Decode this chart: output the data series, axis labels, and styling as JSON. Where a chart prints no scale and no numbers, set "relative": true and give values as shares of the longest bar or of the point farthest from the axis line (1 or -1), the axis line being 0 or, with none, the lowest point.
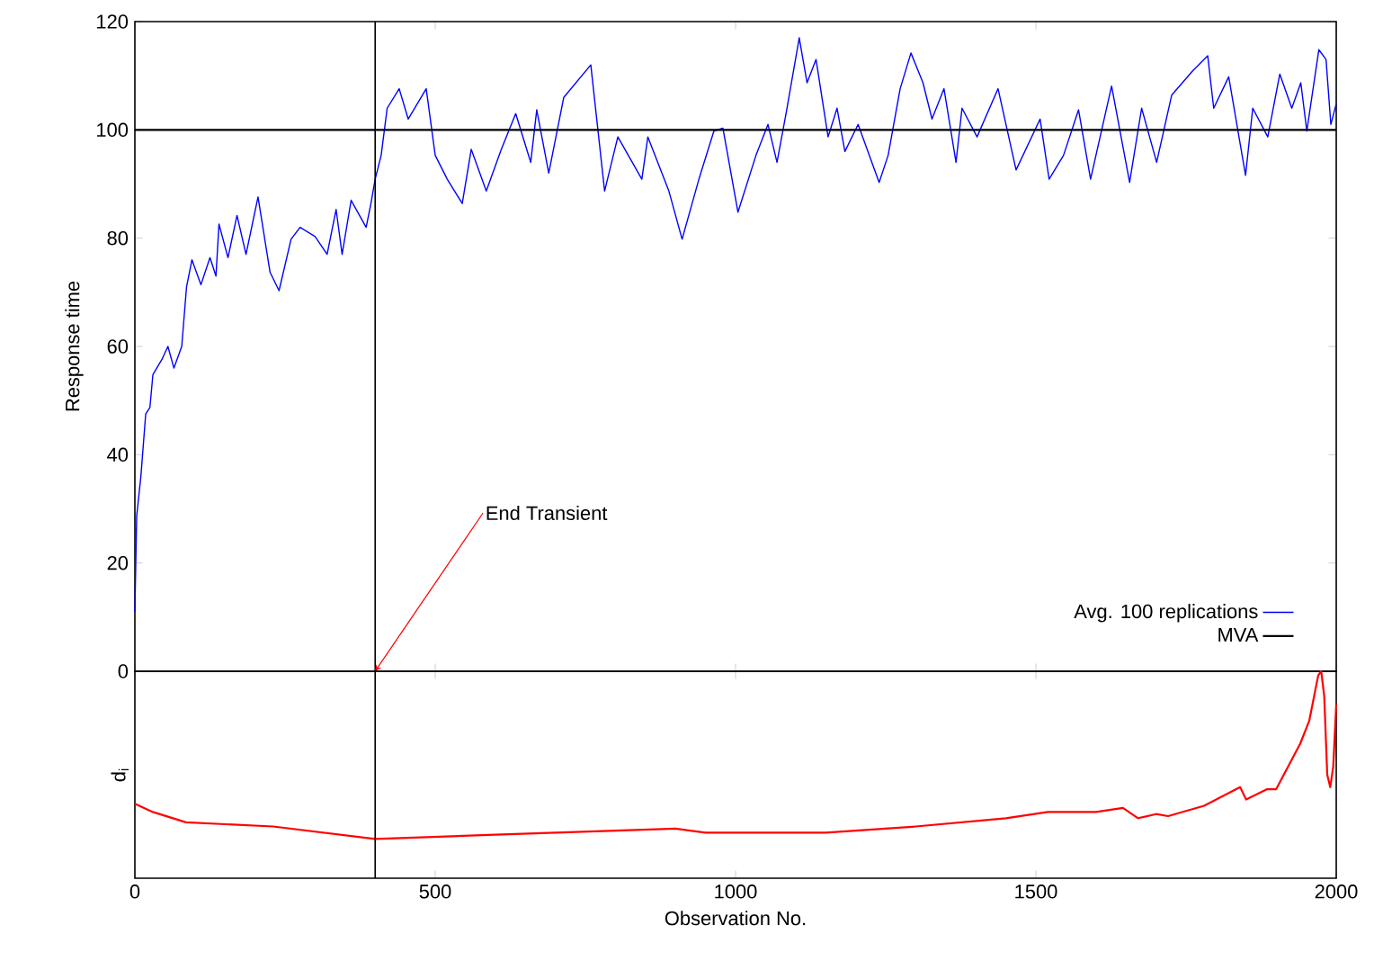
{
  "chart_data": [
    {
      "type": "line",
      "ylabel": "Response time",
      "xlim": [
        0,
        2000
      ],
      "xticks": [
        0,
        500,
        1000,
        1500,
        2000
      ],
      "ylim": [
        0,
        120
      ],
      "yticks": [
        0,
        20,
        40,
        60,
        80,
        100,
        120
      ],
      "tick_labels": "y",
      "legend": "bottom right",
      "ref_lines": [
        {
          "axis": "x",
          "value": 400,
          "color": "#000000"
        }
      ],
      "annotations": [
        {
          "text": "End Transient",
          "x": 400,
          "y": 0
        }
      ],
      "series": [
        {
          "name": "Avg. 100 replications",
          "color": "#0000ff",
          "x": [
            0,
            3,
            10,
            18,
            25,
            30,
            45,
            55,
            65,
            78,
            86,
            95,
            110,
            125,
            135,
            140,
            155,
            170,
            185,
            205,
            225,
            240,
            260,
            275,
            300,
            320,
            335,
            345,
            360,
            385,
            393,
            400,
            410,
            420,
            440,
            455,
            485,
            500,
            520,
            545,
            560,
            585,
            610,
            634,
            659,
            669,
            689,
            714,
            759,
            782,
            804,
            844,
            854,
            889,
            911,
            939,
            964,
            979,
            1004,
            1034,
            1054,
            1069,
            1084,
            1106,
            1119,
            1134,
            1154,
            1169,
            1182,
            1204,
            1239,
            1254,
            1274,
            1292,
            1312,
            1327,
            1347,
            1367,
            1377,
            1402,
            1437,
            1467,
            1507,
            1522,
            1546,
            1571,
            1591,
            1626,
            1656,
            1676,
            1701,
            1726,
            1761,
            1786,
            1796,
            1821,
            1849,
            1861,
            1886,
            1906,
            1926,
            1941,
            1951,
            1971,
            1983,
            1991,
            2000
          ],
          "values": [
            11,
            28.7,
            36,
            47.5,
            48.7,
            54.8,
            57.6,
            60,
            56,
            60,
            71,
            76,
            71.4,
            76.4,
            73,
            82.6,
            76.4,
            84.2,
            77,
            87.6,
            73.7,
            70.3,
            79.8,
            82,
            80.3,
            77,
            85.3,
            77,
            87,
            82,
            86.4,
            90.9,
            95.3,
            104,
            107.6,
            102,
            107.6,
            95.3,
            90.9,
            86.4,
            96.4,
            88.7,
            96.4,
            103,
            94,
            103.7,
            92,
            106,
            112,
            88.7,
            98.7,
            90.9,
            98.7,
            88.7,
            79.8,
            90.9,
            99.8,
            100.3,
            84.8,
            95.3,
            101,
            94,
            103,
            117,
            108.7,
            113,
            98.7,
            104,
            96,
            101,
            90.3,
            95.3,
            107.6,
            114.2,
            108.7,
            102,
            107.6,
            94,
            104,
            98.7,
            107.6,
            92.6,
            102,
            90.9,
            95.3,
            103.7,
            90.9,
            108.1,
            90.3,
            104,
            94,
            106.4,
            110.9,
            113.7,
            104,
            109.8,
            91.6,
            104,
            98.7,
            110.3,
            104,
            108.7,
            99.8,
            114.8,
            113,
            101,
            104.8
          ]
        },
        {
          "name": "MVA",
          "color": "#000000",
          "x": [
            0,
            2000
          ],
          "values": [
            100,
            100
          ]
        }
      ]
    },
    {
      "type": "line",
      "ylabel": "d$_{i}$",
      "xlabel": "Observation No.",
      "relative": true,
      "xlim": [
        0,
        2000
      ],
      "xticks": [
        0,
        500,
        1000,
        1500,
        2000
      ],
      "tick_labels": "x",
      "ref_lines": [
        {
          "axis": "x",
          "value": 400,
          "color": "#000000"
        }
      ],
      "series": [
        {
          "color": "#ff0000",
          "x": [
            0,
            30,
            85,
            230,
            400,
            600,
            900,
            950,
            1050,
            1150,
            1300,
            1450,
            1520,
            1600,
            1645,
            1670,
            1700,
            1720,
            1780,
            1840,
            1850,
            1885,
            1900,
            1940,
            1955,
            1970,
            1975,
            1980,
            1985,
            1990,
            1995,
            2000
          ],
          "values": [
            0.36,
            0.32,
            0.27,
            0.25,
            0.19,
            0.21,
            0.24,
            0.22,
            0.22,
            0.22,
            0.25,
            0.29,
            0.32,
            0.32,
            0.34,
            0.29,
            0.31,
            0.3,
            0.35,
            0.44,
            0.38,
            0.43,
            0.43,
            0.65,
            0.76,
            0.98,
            1,
            0.88,
            0.5,
            0.44,
            0.54,
            0.84
          ]
        }
      ]
    }
  ]
}
